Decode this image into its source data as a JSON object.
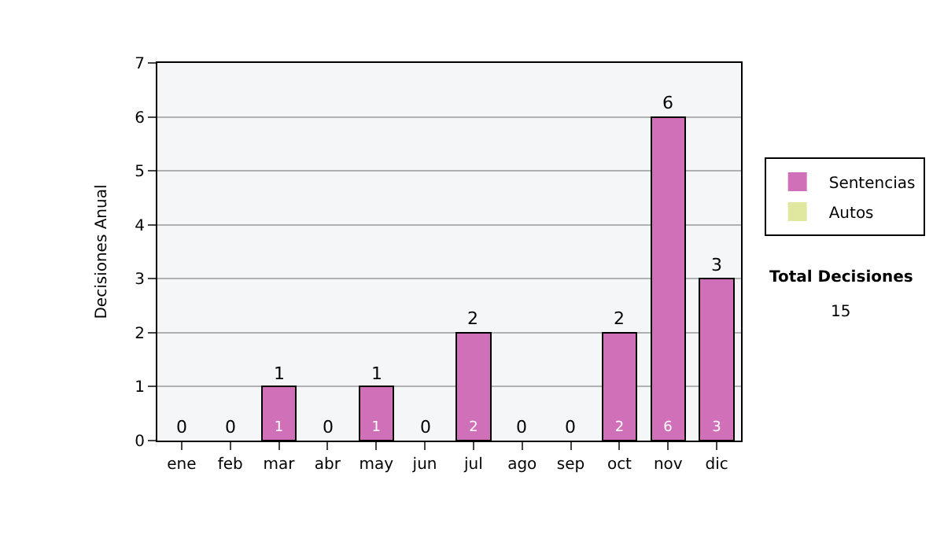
{
  "chart_data": {
    "type": "bar",
    "stacked": true,
    "ylabel": "Decisiones Anual",
    "categories": [
      "ene",
      "feb",
      "mar",
      "abr",
      "may",
      "jun",
      "jul",
      "ago",
      "sep",
      "oct",
      "nov",
      "dic"
    ],
    "series": [
      {
        "name": "Sentencias",
        "color": "#d070b8",
        "values": [
          0,
          0,
          1,
          0,
          1,
          0,
          2,
          0,
          0,
          2,
          6,
          3
        ],
        "value_labels": [
          null,
          null,
          "1",
          null,
          "1",
          null,
          "2",
          null,
          null,
          "2",
          "6",
          "3"
        ]
      },
      {
        "name": "Autos",
        "color": "#e0e8a0",
        "values": [
          0,
          0,
          0,
          0,
          0,
          0,
          0,
          0,
          0,
          0,
          0,
          0
        ]
      }
    ],
    "totals": [
      "0",
      "0",
      "1",
      "0",
      "1",
      "0",
      "2",
      "0",
      "0",
      "2",
      "6",
      "3"
    ],
    "ylim": [
      0,
      7
    ],
    "yticks": [
      0,
      1,
      2,
      3,
      4,
      5,
      6,
      7
    ],
    "grid": "y",
    "legend": "right",
    "annotations": [
      "Total Decisiones",
      "15"
    ]
  }
}
